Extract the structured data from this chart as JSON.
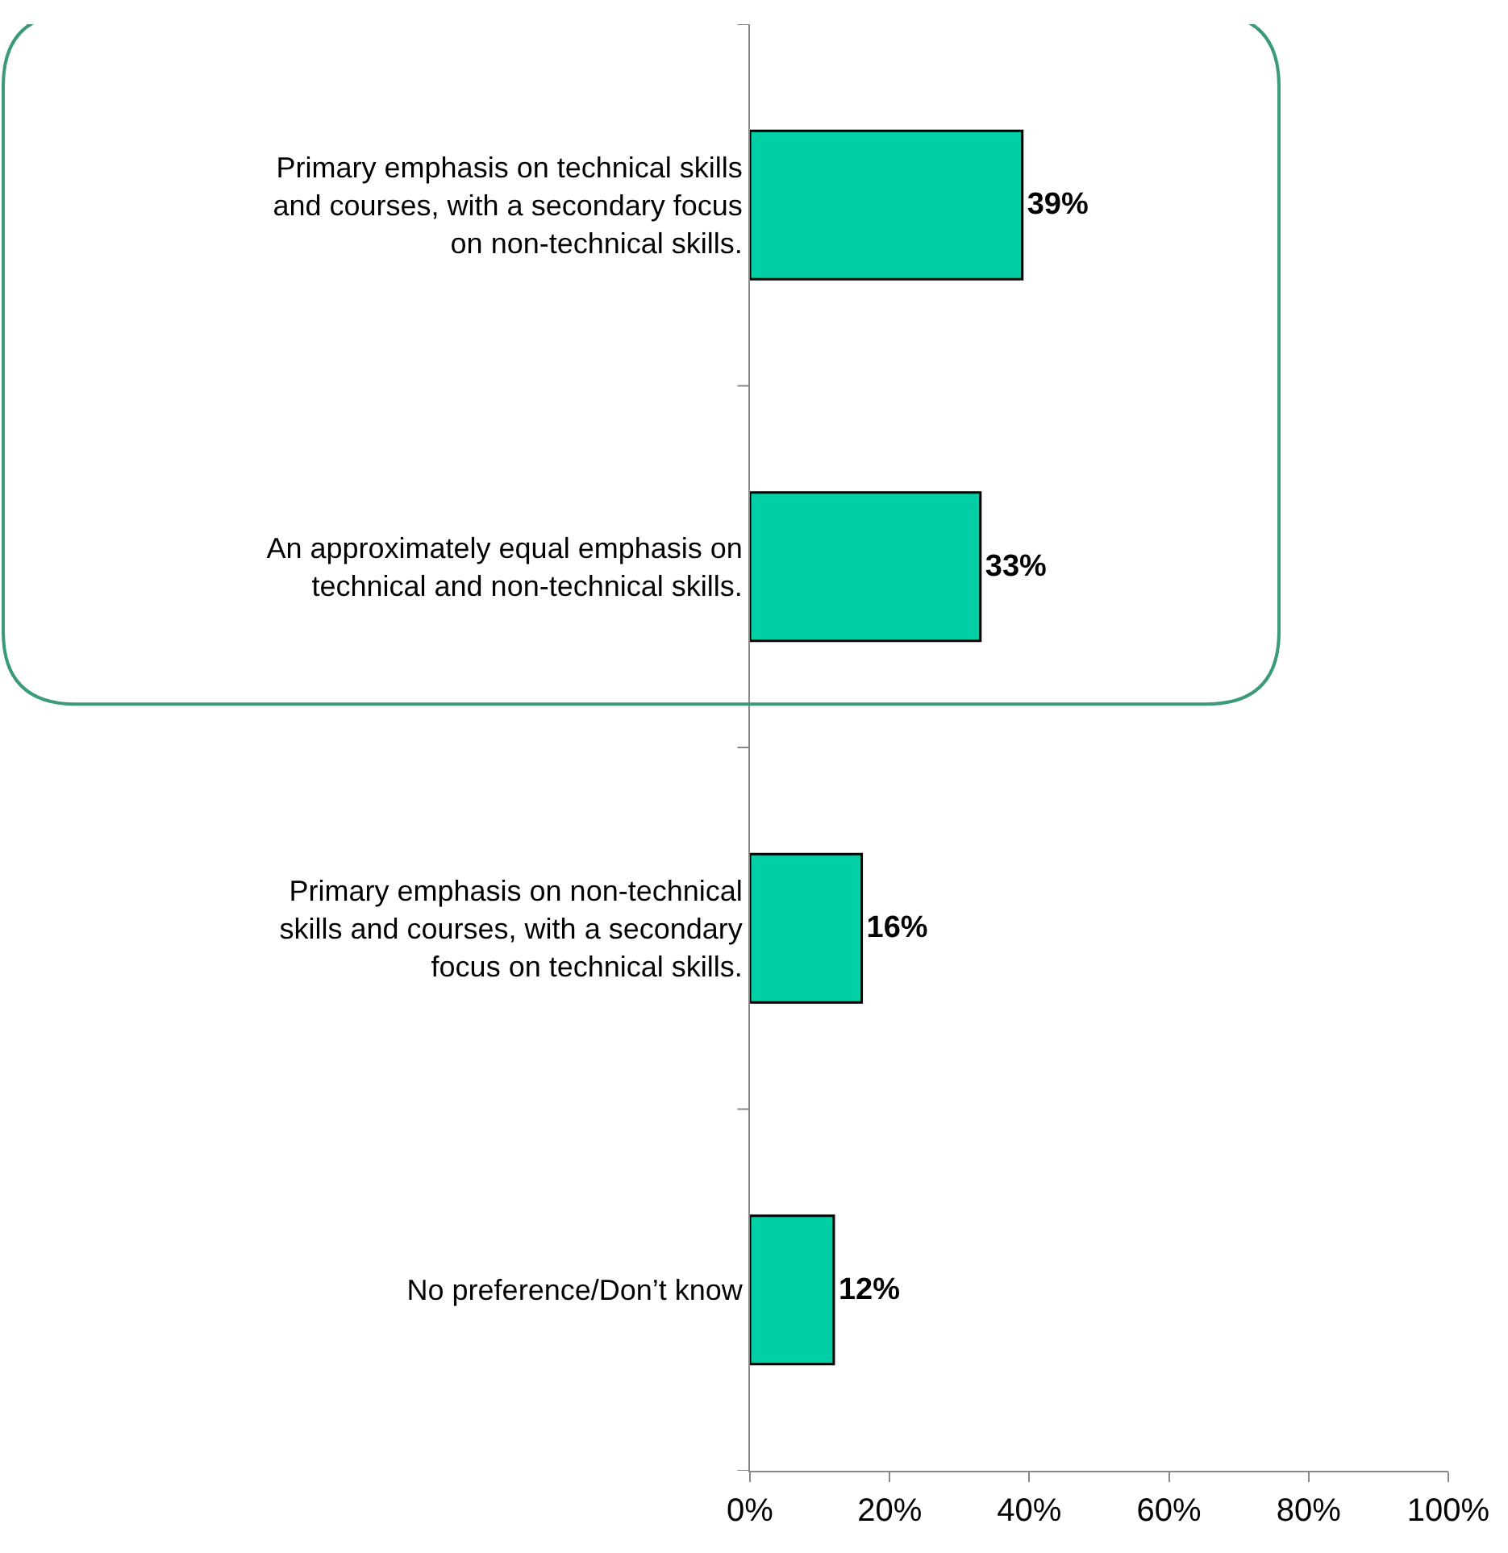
{
  "chart_data": {
    "type": "bar",
    "orientation": "horizontal",
    "categories": [
      "Primary emphasis on technical skills and courses, with a secondary focus on non-technical skills.",
      "An approximately equal emphasis on technical and non-technical skills.",
      "Primary emphasis on non-technical skills and courses, with a secondary focus on technical skills.",
      "No preference/Don’t know"
    ],
    "values": [
      39,
      33,
      16,
      12
    ],
    "value_labels": [
      "39%",
      "33%",
      "16%",
      "12%"
    ],
    "color": "#00cfa5",
    "xlim": [
      0,
      100
    ],
    "xticks": [
      {
        "value": 0,
        "label": "0%"
      },
      {
        "value": 20,
        "label": "20%"
      },
      {
        "value": 40,
        "label": "40%"
      },
      {
        "value": 60,
        "label": "60%"
      },
      {
        "value": 80,
        "label": "80%"
      },
      {
        "value": 100,
        "label": "100%"
      }
    ],
    "legend": false
  }
}
